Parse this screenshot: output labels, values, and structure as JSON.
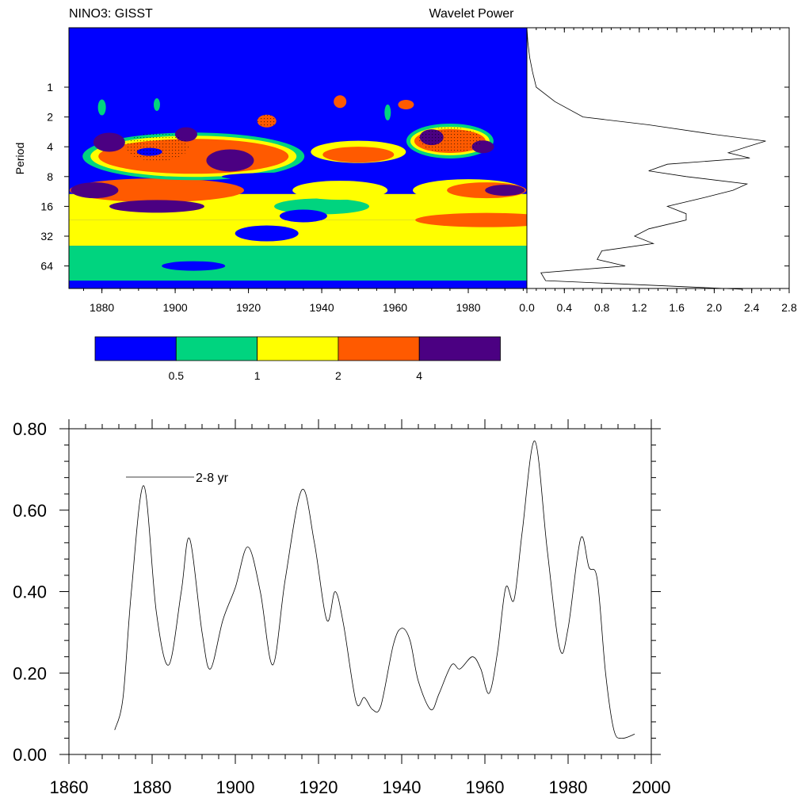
{
  "top_panel": {
    "left_title": "NINO3: GISST",
    "center_title": "Wavelet Power",
    "ylabel": "Period"
  },
  "colorbar": {
    "labels": [
      "0.5",
      "1",
      "2",
      "4"
    ],
    "colors": [
      "#0000ff",
      "#00d47f",
      "#ffff00",
      "#ff5a00",
      "#4b0082"
    ]
  },
  "chart_data": [
    {
      "type": "heatmap",
      "name_ref": "wavelet",
      "title": "NINO3: GISST",
      "ylabel": "Period",
      "xlim": [
        1871,
        1996
      ],
      "x_ticks": [
        "1880",
        "1900",
        "1920",
        "1940",
        "1960",
        "1980"
      ],
      "y_ticks": [
        "1",
        "2",
        "4",
        "8",
        "16",
        "32",
        "64"
      ],
      "y_scale": "log2 (reversed)",
      "contour_levels": [
        0.5,
        1,
        2,
        4
      ],
      "colors": [
        "#0000ff",
        "#00d47f",
        "#ffff00",
        "#ff5a00",
        "#4b0082"
      ]
    },
    {
      "type": "line",
      "title": "Wavelet Power",
      "xlim": [
        0.0,
        2.8
      ],
      "x_ticks": [
        "0.0",
        "0.4",
        "0.8",
        "1.2",
        "1.6",
        "2.0",
        "2.4",
        "2.8"
      ],
      "period": [
        0.25,
        0.35,
        0.5,
        0.7,
        1.0,
        1.4,
        2.0,
        2.4,
        3.0,
        3.5,
        4.0,
        4.6,
        5.2,
        6.0,
        7.0,
        8.0,
        9.5,
        11.0,
        13.0,
        16.0,
        19.0,
        22.0,
        27.0,
        32.0,
        38.0,
        45.0,
        55.0,
        64.0,
        75.0,
        90.0,
        110.0
      ],
      "power": [
        0.0,
        0.01,
        0.03,
        0.06,
        0.1,
        0.3,
        0.6,
        1.3,
        2.0,
        2.55,
        2.35,
        2.15,
        2.38,
        1.5,
        1.3,
        1.7,
        2.35,
        2.2,
        1.9,
        1.5,
        1.7,
        1.7,
        1.3,
        1.15,
        1.35,
        0.8,
        0.75,
        1.05,
        0.15,
        0.2,
        2.3
      ]
    },
    {
      "type": "line",
      "xlim": [
        1860,
        2000
      ],
      "ylim": [
        0.0,
        0.8
      ],
      "x_ticks": [
        "1860",
        "1880",
        "1900",
        "1920",
        "1940",
        "1960",
        "1980",
        "2000"
      ],
      "y_ticks": [
        "0.00",
        "0.20",
        "0.40",
        "0.60",
        "0.80"
      ],
      "legend": "2-8 yr",
      "series": [
        {
          "name": "2-8 yr",
          "x": [
            1871,
            1873,
            1875,
            1878,
            1881,
            1884,
            1887,
            1889,
            1892,
            1894,
            1897,
            1900,
            1903,
            1906,
            1909,
            1912,
            1916,
            1919,
            1922,
            1924,
            1926,
            1929,
            1931,
            1933,
            1935,
            1938,
            1940,
            1942,
            1944,
            1947,
            1949,
            1952,
            1954,
            1957,
            1959,
            1961,
            1963,
            1965,
            1967,
            1969,
            1972,
            1975,
            1978,
            1980,
            1983,
            1985,
            1987,
            1989,
            1991,
            1993,
            1996
          ],
          "y": [
            0.06,
            0.14,
            0.4,
            0.66,
            0.35,
            0.22,
            0.4,
            0.53,
            0.3,
            0.21,
            0.33,
            0.41,
            0.51,
            0.4,
            0.22,
            0.43,
            0.65,
            0.52,
            0.33,
            0.4,
            0.32,
            0.13,
            0.14,
            0.11,
            0.12,
            0.27,
            0.31,
            0.28,
            0.18,
            0.11,
            0.15,
            0.22,
            0.21,
            0.24,
            0.21,
            0.15,
            0.25,
            0.41,
            0.38,
            0.55,
            0.77,
            0.5,
            0.26,
            0.31,
            0.53,
            0.46,
            0.43,
            0.2,
            0.06,
            0.04,
            0.05
          ]
        }
      ]
    }
  ]
}
